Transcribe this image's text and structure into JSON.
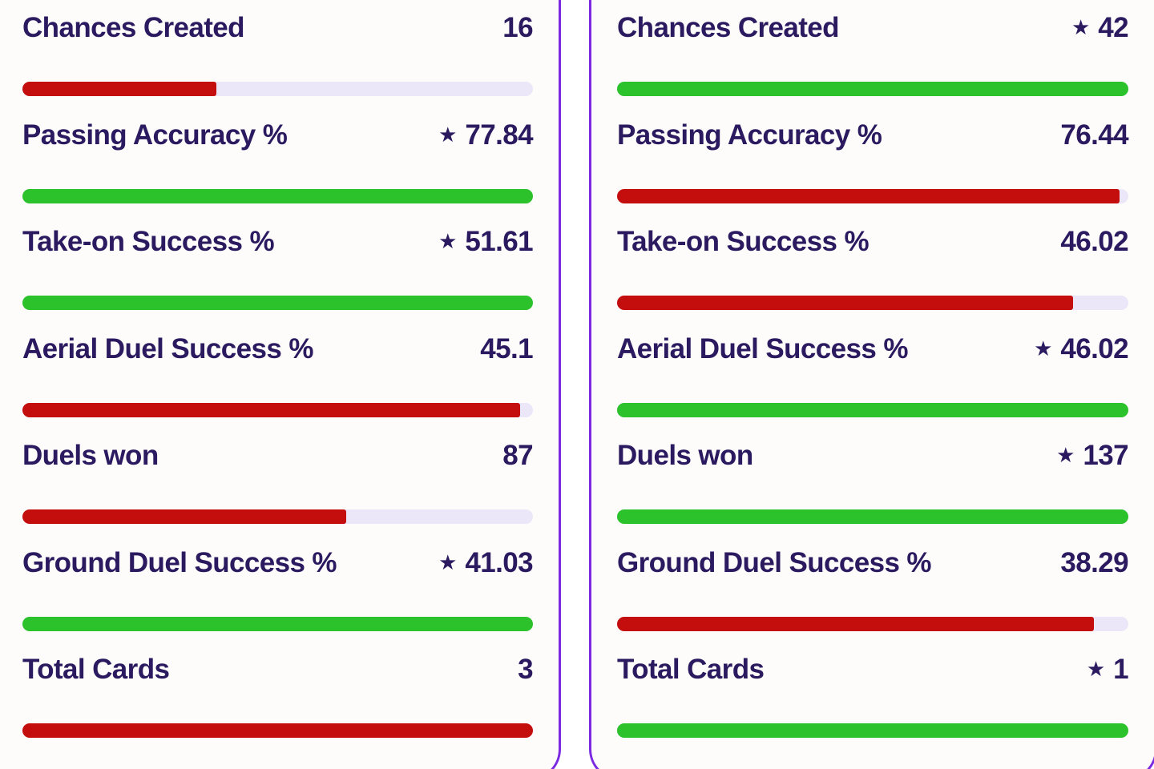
{
  "theme": {
    "accent_purple": "#7c2ae2",
    "green": "#2cc22c",
    "red": "#c40d0d",
    "track": "#ebe7f8",
    "text_navy": "#2b1a5f",
    "card_bg": "#fdfcfb",
    "page_bg": "#ffffff"
  },
  "icons": {
    "star": "★"
  },
  "left_panel": {
    "rows": [
      {
        "label": "Chances Created",
        "value": "16",
        "starred": false,
        "bar_color": "red",
        "fill_pct": 38
      },
      {
        "label": "Passing Accuracy %",
        "value": "77.84",
        "starred": true,
        "bar_color": "green",
        "fill_pct": 100
      },
      {
        "label": "Take-on Success %",
        "value": "51.61",
        "starred": true,
        "bar_color": "green",
        "fill_pct": 100
      },
      {
        "label": "Aerial Duel Success %",
        "value": "45.1",
        "starred": false,
        "bar_color": "red",
        "fill_pct": 97.5
      },
      {
        "label": "Duels won",
        "value": "87",
        "starred": false,
        "bar_color": "red",
        "fill_pct": 63.5
      },
      {
        "label": "Ground Duel Success %",
        "value": "41.03",
        "starred": true,
        "bar_color": "green",
        "fill_pct": 100
      },
      {
        "label": "Total Cards",
        "value": "3",
        "starred": false,
        "bar_color": "red",
        "fill_pct": 100
      }
    ]
  },
  "right_panel": {
    "rows": [
      {
        "label": "Chances Created",
        "value": "42",
        "starred": true,
        "bar_color": "green",
        "fill_pct": 100
      },
      {
        "label": "Passing Accuracy %",
        "value": "76.44",
        "starred": false,
        "bar_color": "red",
        "fill_pct": 98.2
      },
      {
        "label": "Take-on Success %",
        "value": "46.02",
        "starred": false,
        "bar_color": "red",
        "fill_pct": 89.2
      },
      {
        "label": "Aerial Duel Success %",
        "value": "46.02",
        "starred": true,
        "bar_color": "green",
        "fill_pct": 100
      },
      {
        "label": "Duels won",
        "value": "137",
        "starred": true,
        "bar_color": "green",
        "fill_pct": 100
      },
      {
        "label": "Ground Duel Success %",
        "value": "38.29",
        "starred": false,
        "bar_color": "red",
        "fill_pct": 93.3
      },
      {
        "label": "Total Cards",
        "value": "1",
        "starred": true,
        "bar_color": "green",
        "fill_pct": 100
      }
    ]
  },
  "chart_data": {
    "type": "bar",
    "categories": [
      "Chances Created",
      "Passing Accuracy %",
      "Take-on Success %",
      "Aerial Duel Success %",
      "Duels won",
      "Ground Duel Success %",
      "Total Cards"
    ],
    "series": [
      {
        "name": "left",
        "values": [
          16,
          77.84,
          51.61,
          45.1,
          87,
          41.03,
          3
        ]
      },
      {
        "name": "right",
        "values": [
          42,
          76.44,
          46.02,
          46.02,
          137,
          38.29,
          1
        ]
      }
    ],
    "legend_position": "none",
    "grid": false
  }
}
